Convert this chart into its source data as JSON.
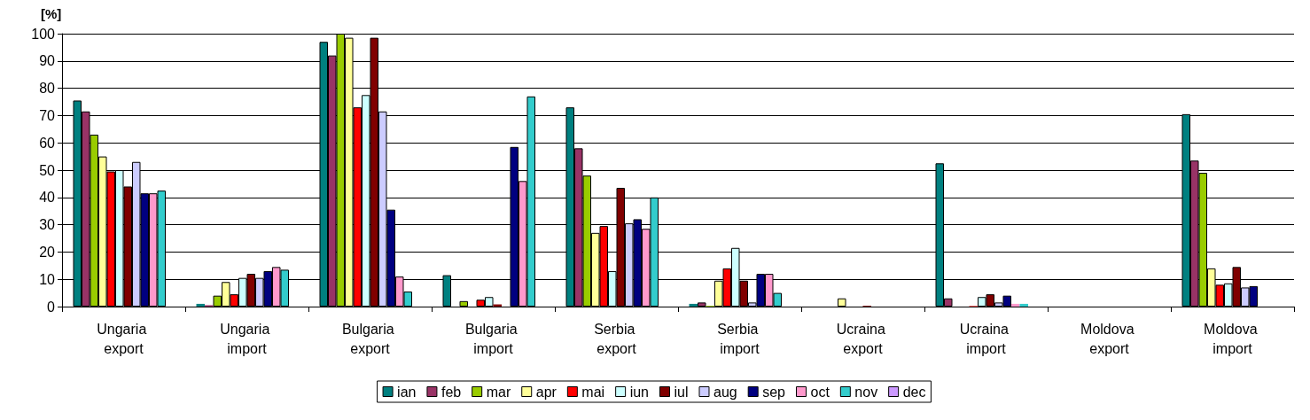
{
  "chart_data": {
    "type": "bar",
    "ylabel": "[%]",
    "categories": [
      "Ungaria export",
      "Ungaria import",
      "Bulgaria export",
      "Bulgaria import",
      "Serbia export",
      "Serbia import",
      "Ucraina export",
      "Ucraina import",
      "Moldova export",
      "Moldova import"
    ],
    "series": [
      {
        "name": "ian",
        "color": "#008080",
        "values": [
          75.5,
          1,
          97,
          11.5,
          73,
          1,
          null,
          52.5,
          null,
          70.5
        ]
      },
      {
        "name": "feb",
        "color": "#993366",
        "values": [
          71.5,
          0.5,
          92,
          null,
          58,
          1.5,
          null,
          3,
          null,
          53.5
        ]
      },
      {
        "name": "mar",
        "color": "#99cc00",
        "values": [
          63,
          4,
          100,
          2,
          48,
          0.3,
          null,
          null,
          null,
          49
        ]
      },
      {
        "name": "apr",
        "color": "#ffff99",
        "values": [
          55,
          9,
          98.5,
          null,
          27,
          9.5,
          3,
          null,
          null,
          14
        ]
      },
      {
        "name": "mai",
        "color": "#ff0000",
        "values": [
          49.5,
          4.5,
          73,
          2.5,
          29.5,
          14,
          null,
          0.2,
          null,
          8
        ]
      },
      {
        "name": "iun",
        "color": "#ccffff",
        "values": [
          50,
          10.5,
          77.5,
          3.5,
          13,
          21.5,
          null,
          3.5,
          null,
          8.5
        ]
      },
      {
        "name": "iul",
        "color": "#800000",
        "values": [
          44,
          12,
          98.5,
          0.8,
          43.5,
          9.5,
          0.3,
          4.5,
          null,
          14.5
        ]
      },
      {
        "name": "aug",
        "color": "#ccccff",
        "values": [
          53,
          10.5,
          71.5,
          null,
          30.5,
          1.5,
          null,
          1.5,
          null,
          7
        ]
      },
      {
        "name": "sep",
        "color": "#000080",
        "values": [
          41.5,
          13,
          35.5,
          58.5,
          32,
          12,
          null,
          4,
          null,
          7.5
        ]
      },
      {
        "name": "oct",
        "color": "#ff99cc",
        "values": [
          41.5,
          14.5,
          11,
          46,
          28.5,
          12,
          null,
          1,
          null,
          null
        ]
      },
      {
        "name": "nov",
        "color": "#33cccc",
        "values": [
          42.5,
          13.5,
          5.5,
          77,
          40,
          5,
          null,
          1,
          null,
          null
        ]
      },
      {
        "name": "dec",
        "color": "#cc99ff",
        "values": [
          null,
          null,
          null,
          null,
          null,
          null,
          null,
          null,
          null,
          null
        ]
      }
    ],
    "ylim": [
      0,
      100
    ],
    "yticks": [
      0,
      10,
      20,
      30,
      40,
      50,
      60,
      70,
      80,
      90,
      100
    ],
    "grid": "y",
    "legend": "bottom"
  }
}
